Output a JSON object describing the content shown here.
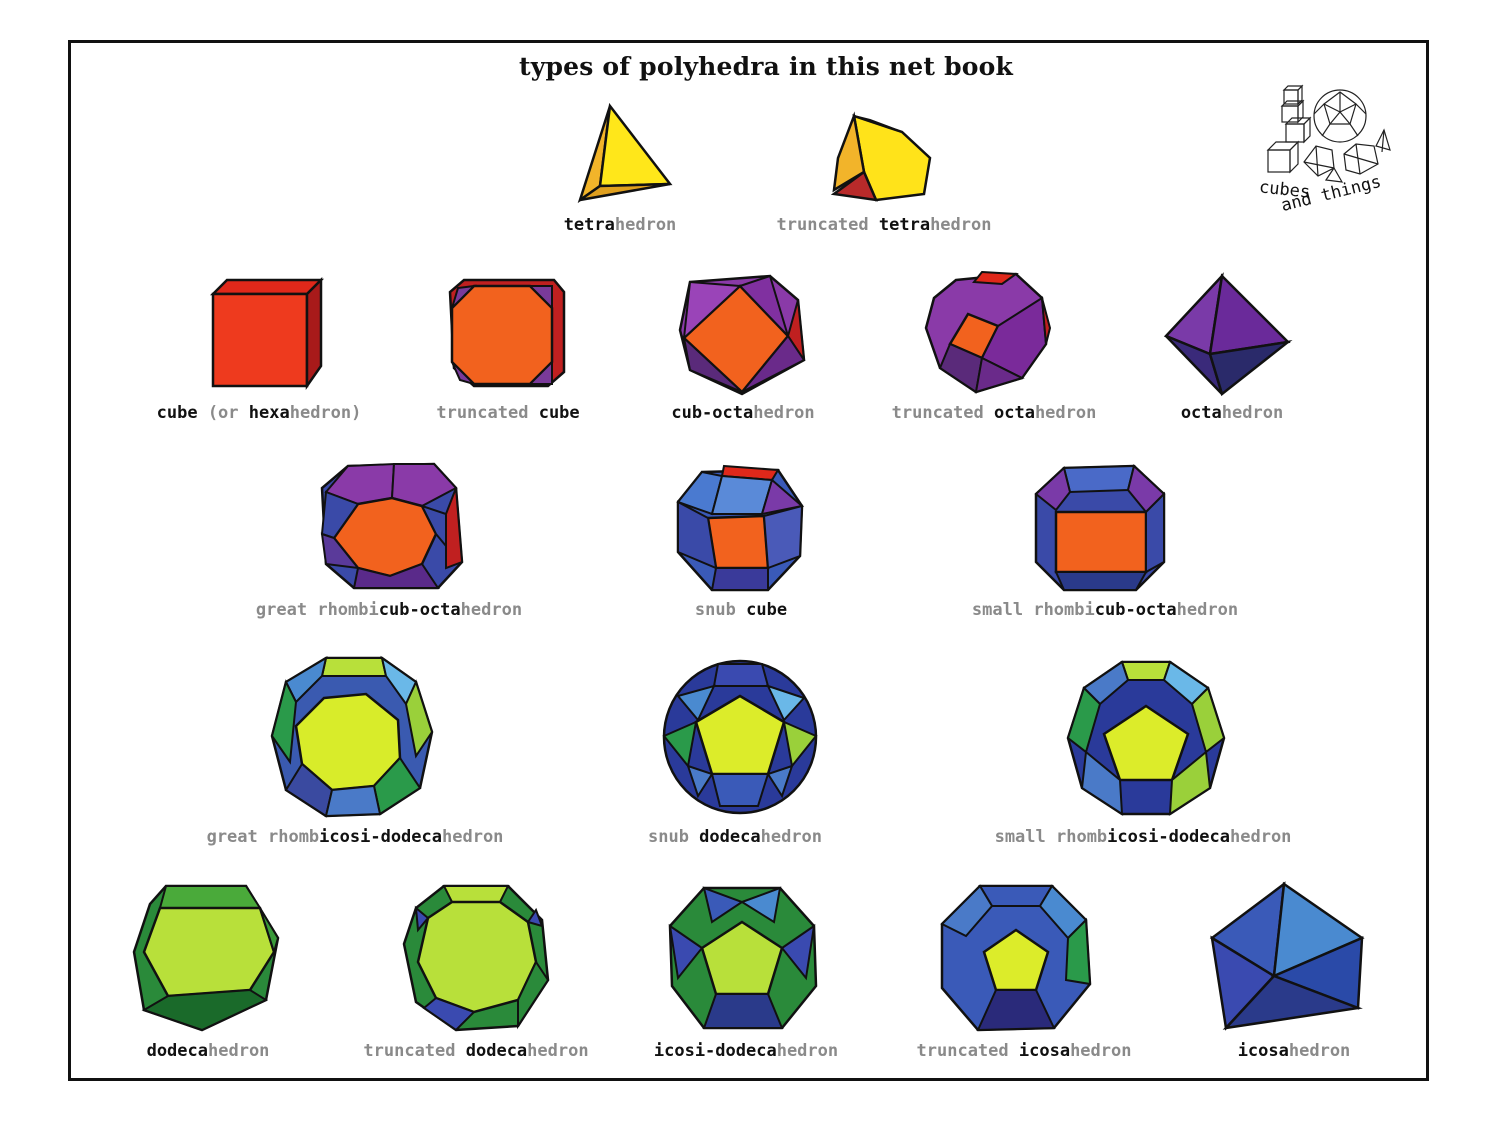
{
  "title": "types of polyhedra in this net book",
  "logo": {
    "line1": "cubes",
    "line2": "and things"
  },
  "items": [
    {
      "name": "tetrahedron",
      "parts": [
        {
          "t": "tetra",
          "s": "b"
        },
        {
          "t": "hedron",
          "s": "g"
        }
      ]
    },
    {
      "name": "truncated-tetrahedron",
      "parts": [
        {
          "t": "truncated ",
          "s": "g"
        },
        {
          "t": "tetra",
          "s": "b"
        },
        {
          "t": "hedron",
          "s": "g"
        }
      ]
    },
    {
      "name": "cube",
      "parts": [
        {
          "t": "cube ",
          "s": "b"
        },
        {
          "t": "(or ",
          "s": "g"
        },
        {
          "t": "hexa",
          "s": "b"
        },
        {
          "t": "hedron)",
          "s": "g"
        }
      ]
    },
    {
      "name": "truncated-cube",
      "parts": [
        {
          "t": "truncated ",
          "s": "g"
        },
        {
          "t": "cube",
          "s": "b"
        }
      ]
    },
    {
      "name": "cub-octahedron",
      "parts": [
        {
          "t": "cub-octa",
          "s": "b"
        },
        {
          "t": "hedron",
          "s": "g"
        }
      ]
    },
    {
      "name": "truncated-octahedron",
      "parts": [
        {
          "t": "truncated ",
          "s": "g"
        },
        {
          "t": "octa",
          "s": "b"
        },
        {
          "t": "hedron",
          "s": "g"
        }
      ]
    },
    {
      "name": "octahedron",
      "parts": [
        {
          "t": "octa",
          "s": "b"
        },
        {
          "t": "hedron",
          "s": "g"
        }
      ]
    },
    {
      "name": "great-rhombicub-octahedron",
      "parts": [
        {
          "t": "great rhombi",
          "s": "g"
        },
        {
          "t": "cub-octa",
          "s": "b"
        },
        {
          "t": "hedron",
          "s": "g"
        }
      ]
    },
    {
      "name": "snub-cube",
      "parts": [
        {
          "t": "snub ",
          "s": "g"
        },
        {
          "t": "cube",
          "s": "b"
        }
      ]
    },
    {
      "name": "small-rhombicub-octahedron",
      "parts": [
        {
          "t": "small rhombi",
          "s": "g"
        },
        {
          "t": "cub-octa",
          "s": "b"
        },
        {
          "t": "hedron",
          "s": "g"
        }
      ]
    },
    {
      "name": "great-rhombicosi-dodecahedron",
      "parts": [
        {
          "t": "great rhomb",
          "s": "g"
        },
        {
          "t": "icosi-dodeca",
          "s": "b"
        },
        {
          "t": "hedron",
          "s": "g"
        }
      ]
    },
    {
      "name": "snub-dodecahedron",
      "parts": [
        {
          "t": "snub ",
          "s": "g"
        },
        {
          "t": "dodeca",
          "s": "b"
        },
        {
          "t": "hedron",
          "s": "g"
        }
      ]
    },
    {
      "name": "small-rhombicosi-dodecahedron",
      "parts": [
        {
          "t": "small rhomb",
          "s": "g"
        },
        {
          "t": "icosi-dodeca",
          "s": "b"
        },
        {
          "t": "hedron",
          "s": "g"
        }
      ]
    },
    {
      "name": "dodecahedron",
      "parts": [
        {
          "t": "dodeca",
          "s": "b"
        },
        {
          "t": "hedron",
          "s": "g"
        }
      ]
    },
    {
      "name": "truncated-dodecahedron",
      "parts": [
        {
          "t": "truncated ",
          "s": "g"
        },
        {
          "t": "dodeca",
          "s": "b"
        },
        {
          "t": "hedron",
          "s": "g"
        }
      ]
    },
    {
      "name": "icosi-dodecahedron",
      "parts": [
        {
          "t": "icosi-dodeca",
          "s": "b"
        },
        {
          "t": "hedron",
          "s": "g"
        }
      ]
    },
    {
      "name": "truncated-icosahedron",
      "parts": [
        {
          "t": "truncated ",
          "s": "g"
        },
        {
          "t": "icosa",
          "s": "b"
        },
        {
          "t": "hedron",
          "s": "g"
        }
      ]
    },
    {
      "name": "icosahedron",
      "parts": [
        {
          "t": "icosa",
          "s": "b"
        },
        {
          "t": "hedron",
          "s": "g"
        }
      ]
    }
  ]
}
